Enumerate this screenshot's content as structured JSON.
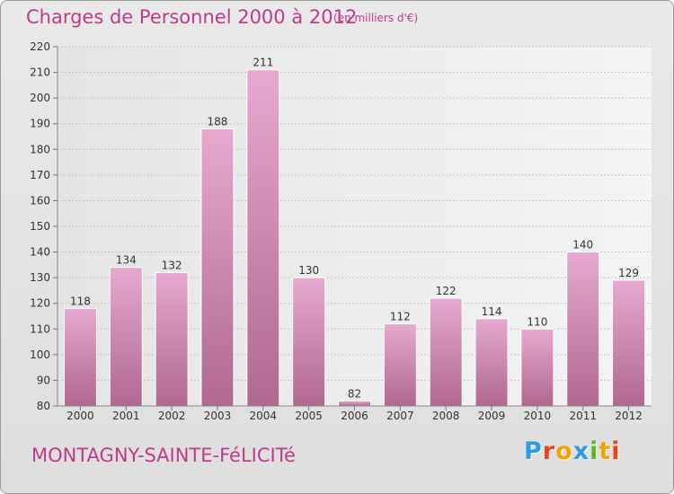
{
  "header": {
    "title": "Charges de Personnel 2000 à 2012",
    "subtitle": "(en milliers d'€)"
  },
  "footer": {
    "commune": "MONTAGNY-SAINTE-FéLICITé",
    "logo_letters": [
      {
        "ch": "P",
        "color": "#2f9be0"
      },
      {
        "ch": "r",
        "color": "#e8441f"
      },
      {
        "ch": "o",
        "color": "#f5a300"
      },
      {
        "ch": "x",
        "color": "#2f9be0"
      },
      {
        "ch": "i",
        "color": "#5cb62b"
      },
      {
        "ch": "t",
        "color": "#f5a300"
      },
      {
        "ch": "i",
        "color": "#e8441f"
      }
    ]
  },
  "colors": {
    "bar_light": "#e6a9cf",
    "bar_dark": "#b0688f",
    "accent": "#c03a8a"
  },
  "chart_data": {
    "type": "bar",
    "title": "Charges de Personnel 2000 à 2012",
    "subtitle": "(en milliers d'€)",
    "categories": [
      "2000",
      "2001",
      "2002",
      "2003",
      "2004",
      "2005",
      "2006",
      "2007",
      "2008",
      "2009",
      "2010",
      "2011",
      "2012"
    ],
    "values": [
      118,
      134,
      132,
      188,
      211,
      130,
      82,
      112,
      122,
      114,
      110,
      140,
      129
    ],
    "ylim": [
      80,
      220
    ],
    "yticks": [
      80,
      90,
      100,
      110,
      120,
      130,
      140,
      150,
      160,
      170,
      180,
      190,
      200,
      210,
      220
    ],
    "grid": true
  }
}
